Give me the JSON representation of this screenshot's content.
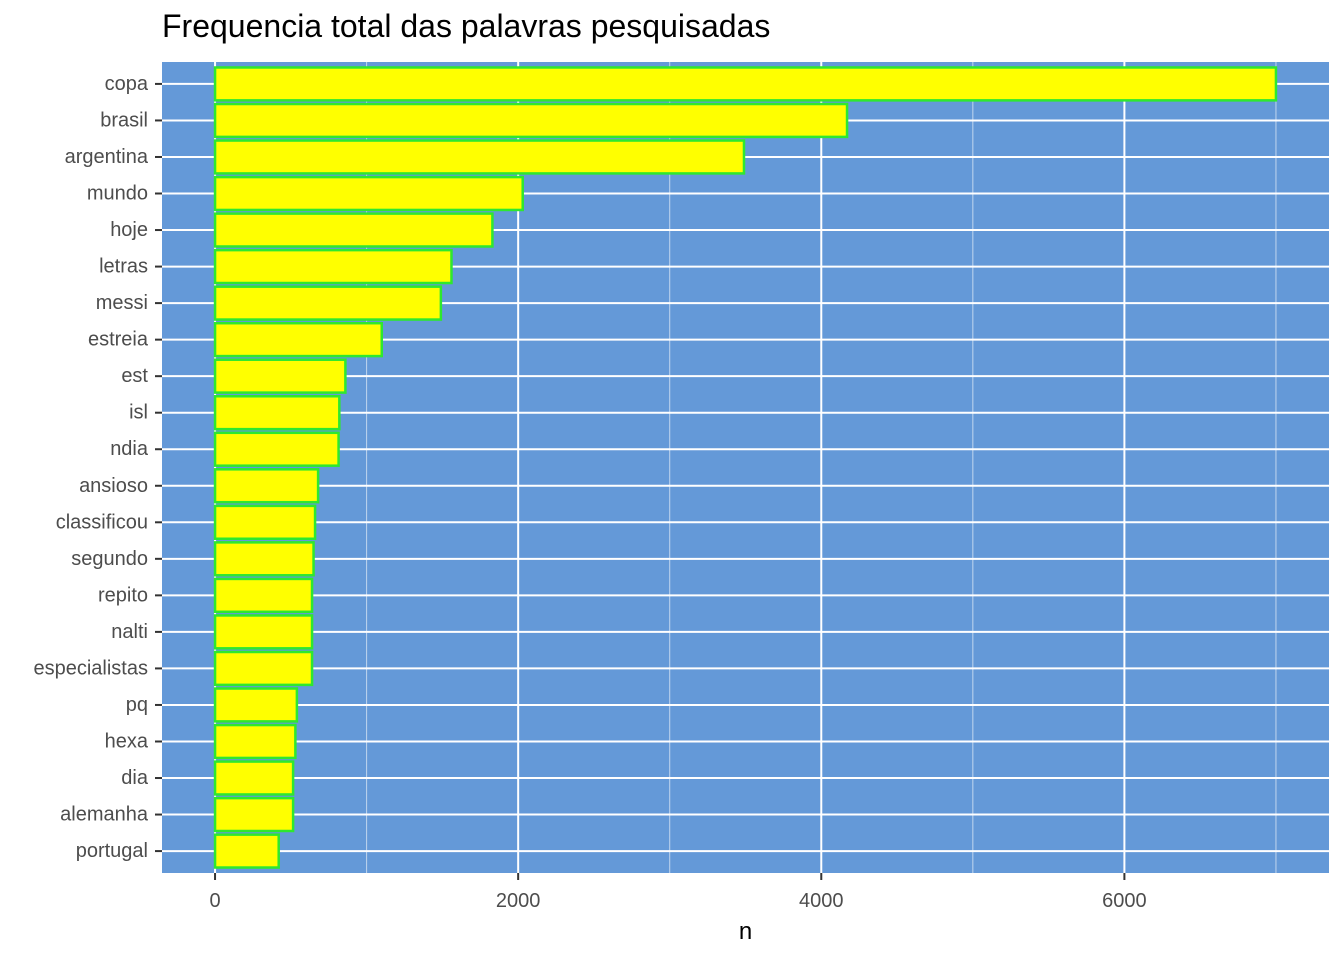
{
  "chart_data": {
    "type": "bar",
    "orientation": "horizontal",
    "title": "Frequencia total das palavras pesquisadas",
    "xlabel": "n",
    "ylabel": "",
    "categories": [
      "copa",
      "brasil",
      "argentina",
      "mundo",
      "hoje",
      "letras",
      "messi",
      "estreia",
      "est",
      "isl",
      "ndia",
      "ansioso",
      "classificou",
      "segundo",
      "repito",
      "nalti",
      "especialistas",
      "pq",
      "hexa",
      "dia",
      "alemanha",
      "portugal"
    ],
    "values": [
      7000,
      4170,
      3490,
      2030,
      1830,
      1560,
      1490,
      1100,
      860,
      820,
      815,
      680,
      660,
      650,
      640,
      640,
      640,
      540,
      530,
      515,
      515,
      420
    ],
    "xlim": [
      -350,
      7350
    ],
    "xticks": [
      0,
      2000,
      4000,
      6000
    ],
    "xtick_labels": [
      "0",
      "2000",
      "4000",
      "6000"
    ],
    "grid": true,
    "legend": "none",
    "colors": {
      "panel_background": "#6499d8",
      "grid": "#ffffff",
      "bar_fill": "#ffff00",
      "bar_outline": "#2ee82e",
      "tick_text": "#4d4d4d",
      "tick_mark": "#333333"
    }
  }
}
